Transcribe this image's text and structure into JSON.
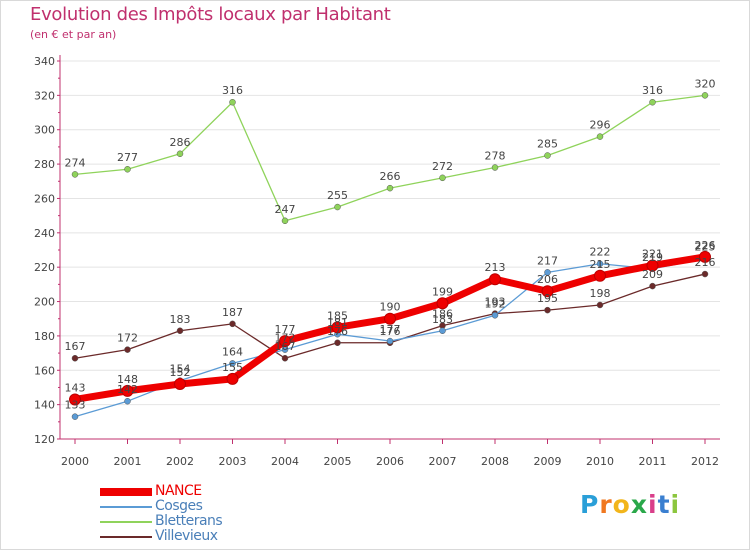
{
  "colors": {
    "title": "#c0306e",
    "axis": "#c0306e",
    "grid": "#e4e4e4",
    "text": "#444444",
    "series": [
      "#ee0000",
      "#5b9bd5",
      "#8fd35b",
      "#6b2a2a"
    ]
  },
  "chart_data": {
    "type": "line",
    "title": "Evolution des Impôts locaux par Habitant",
    "subtitle": "(en € et par an)",
    "xlabel": "",
    "ylabel": "",
    "ylim": [
      120,
      340
    ],
    "yticks": [
      120,
      140,
      160,
      180,
      200,
      220,
      240,
      260,
      280,
      300,
      320,
      340
    ],
    "categories": [
      "2000",
      "2001",
      "2002",
      "2003",
      "2004",
      "2005",
      "2006",
      "2007",
      "2008",
      "2009",
      "2010",
      "2011",
      "2012"
    ],
    "series": [
      {
        "name": "NANCE",
        "values": [
          143,
          148,
          152,
          155,
          177,
          185,
          190,
          199,
          213,
          206,
          215,
          221,
          226
        ]
      },
      {
        "name": "Cosges",
        "values": [
          133,
          142,
          154,
          164,
          172,
          181,
          177,
          183,
          192,
          217,
          222,
          219,
          225
        ]
      },
      {
        "name": "Bletterans",
        "values": [
          274,
          277,
          286,
          316,
          247,
          255,
          266,
          272,
          278,
          285,
          296,
          316,
          320
        ]
      },
      {
        "name": "Villevieux",
        "values": [
          167,
          172,
          183,
          187,
          167,
          176,
          176,
          186,
          193,
          195,
          198,
          209,
          216
        ]
      }
    ]
  },
  "legend": {
    "items": [
      "NANCE",
      "Cosges",
      "Bletterans",
      "Villevieux"
    ]
  },
  "logo": {
    "letters": [
      "P",
      "r",
      "o",
      "x",
      "i",
      "t",
      "i"
    ],
    "colors": [
      "#2a9fd8",
      "#f07820",
      "#f2b51b",
      "#2aa84a",
      "#d93f8a",
      "#3a7fd0",
      "#8cc63e"
    ]
  }
}
